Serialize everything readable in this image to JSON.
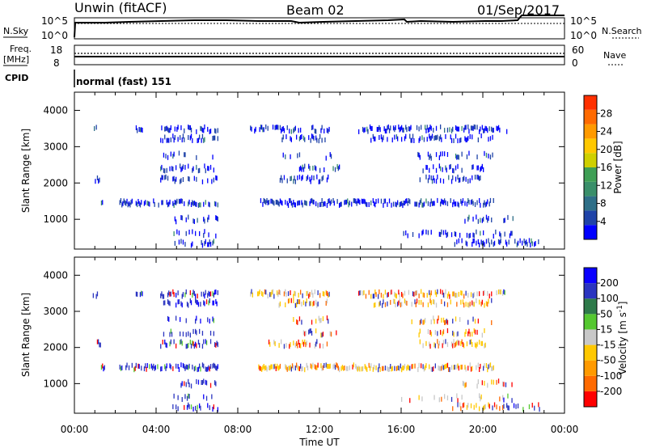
{
  "header": {
    "site_title": "Unwin (fitACF)",
    "beam": "Beam 02",
    "date": "01/Sep/2017"
  },
  "top_panels": {
    "nsky_label": "N.Sky",
    "nsky_ticks": [
      "10^5",
      "10^0"
    ],
    "nsearch_label": "N.Search",
    "nsearch_ticks": [
      "10^5",
      "10^0"
    ],
    "freq_label": "Freq.",
    "freq_unit": "[MHz]",
    "freq_ticks": [
      "18",
      "8"
    ],
    "nave_label": "Nave",
    "nave_ticks": [
      "60",
      "0"
    ],
    "cpid_label": "CPID",
    "cpid_text": "normal (fast) 151"
  },
  "colors": {
    "vel_bar": [
      "#ff0000",
      "#ff6a00",
      "#ff9a00",
      "#ffc800",
      "#c8c8c8",
      "#55c830",
      "#2e7a4a",
      "#2b35c0",
      "#0a00ff"
    ],
    "pow_bar": [
      "#0000ff",
      "#1f43a8",
      "#2f6f88",
      "#3a8f6a",
      "#3f9f55",
      "#cfd000",
      "#ffc800",
      "#ff9a00",
      "#ff6a00",
      "#ff3000"
    ]
  },
  "chart_data": [
    {
      "type": "heatmap",
      "name": "power",
      "xlabel": "",
      "ylabel": "Slant Range [km]",
      "xlim": [
        0,
        24
      ],
      "ylim": [
        180,
        4500
      ],
      "yticks": [
        "1000",
        "2000",
        "3000",
        "4000"
      ],
      "colorbar": {
        "label": "Power [dB]",
        "ticks": [
          "4",
          "8",
          "12",
          "16",
          "20",
          "24",
          "28"
        ],
        "range": [
          0,
          32
        ]
      },
      "bands": [
        {
          "range": 3480,
          "intervals": [
            [
              0.9,
              1.1
            ],
            [
              3.0,
              3.3
            ],
            [
              4.2,
              7.0
            ],
            [
              8.6,
              12.5
            ],
            [
              13.8,
              21.2
            ]
          ],
          "density": 0.55
        },
        {
          "range": 3230,
          "intervals": [
            [
              4.2,
              7.0
            ],
            [
              10.0,
              12.4
            ],
            [
              14.5,
              20.5
            ]
          ],
          "density": 0.5
        },
        {
          "range": 2750,
          "intervals": [
            [
              4.3,
              6.9
            ],
            [
              10.2,
              12.6
            ],
            [
              16.5,
              20.5
            ]
          ],
          "density": 0.25
        },
        {
          "range": 2400,
          "intervals": [
            [
              4.2,
              6.8
            ],
            [
              11.0,
              13.0
            ],
            [
              16.8,
              20.2
            ]
          ],
          "density": 0.4
        },
        {
          "range": 2100,
          "intervals": [
            [
              1.0,
              1.3
            ],
            [
              4.2,
              7.0
            ],
            [
              10.0,
              12.6
            ],
            [
              16.8,
              20.2
            ]
          ],
          "density": 0.5
        },
        {
          "range": 1450,
          "intervals": [
            [
              1.3,
              1.5
            ],
            [
              2.2,
              7.0
            ],
            [
              9.0,
              20.6
            ]
          ],
          "density": 0.7
        },
        {
          "range": 1000,
          "intervals": [
            [
              4.8,
              7.0
            ],
            [
              19.0,
              21.5
            ]
          ],
          "density": 0.35
        },
        {
          "range": 600,
          "intervals": [
            [
              4.8,
              7.0
            ],
            [
              16.0,
              21.5
            ]
          ],
          "density": 0.3
        },
        {
          "range": 350,
          "intervals": [
            [
              4.8,
              7.0
            ],
            [
              18.5,
              22.8
            ]
          ],
          "density": 0.45
        }
      ]
    },
    {
      "type": "heatmap",
      "name": "velocity",
      "xlabel": "Time UT",
      "ylabel": "Slant Range [km]",
      "xlim": [
        0,
        24
      ],
      "ylim": [
        180,
        4500
      ],
      "xticks": [
        "00:00",
        "04:00",
        "08:00",
        "12:00",
        "16:00",
        "20:00",
        "00:00"
      ],
      "yticks": [
        "1000",
        "2000",
        "3000",
        "4000"
      ],
      "colorbar": {
        "label": "Velocity [m s",
        "label_exponent": "-1",
        "label_close": "]",
        "ticks": [
          "200",
          "100",
          "50",
          "15",
          "-15",
          "-50",
          "-100",
          "-200"
        ],
        "range": [
          -250,
          250
        ]
      },
      "bands": [
        {
          "range": 3480,
          "intervals": [
            [
              0.9,
              1.1
            ],
            [
              3.0,
              3.3
            ],
            [
              4.2,
              7.0
            ],
            [
              8.6,
              12.5
            ],
            [
              13.8,
              21.2
            ]
          ],
          "density": 0.55
        },
        {
          "range": 3230,
          "intervals": [
            [
              4.2,
              7.0
            ],
            [
              10.0,
              12.4
            ],
            [
              14.5,
              20.5
            ]
          ],
          "density": 0.5
        },
        {
          "range": 2750,
          "intervals": [
            [
              4.3,
              6.9
            ],
            [
              10.2,
              12.6
            ],
            [
              16.5,
              20.5
            ]
          ],
          "density": 0.25
        },
        {
          "range": 2400,
          "intervals": [
            [
              4.2,
              6.8
            ],
            [
              11.0,
              13.0
            ],
            [
              16.8,
              20.2
            ]
          ],
          "density": 0.4
        },
        {
          "range": 2100,
          "intervals": [
            [
              1.0,
              1.3
            ],
            [
              4.2,
              7.0
            ],
            [
              9.5,
              12.6
            ],
            [
              16.8,
              20.2
            ]
          ],
          "density": 0.5
        },
        {
          "range": 1450,
          "intervals": [
            [
              1.3,
              1.5
            ],
            [
              2.2,
              7.0
            ],
            [
              9.0,
              20.6
            ]
          ],
          "density": 0.7
        },
        {
          "range": 1000,
          "intervals": [
            [
              4.8,
              7.0
            ],
            [
              19.0,
              21.5
            ]
          ],
          "density": 0.35
        },
        {
          "range": 600,
          "intervals": [
            [
              4.8,
              7.0
            ],
            [
              16.0,
              21.5
            ]
          ],
          "density": 0.3
        },
        {
          "range": 350,
          "intervals": [
            [
              4.8,
              7.0
            ],
            [
              18.5,
              22.8
            ]
          ],
          "density": 0.45
        }
      ]
    }
  ]
}
